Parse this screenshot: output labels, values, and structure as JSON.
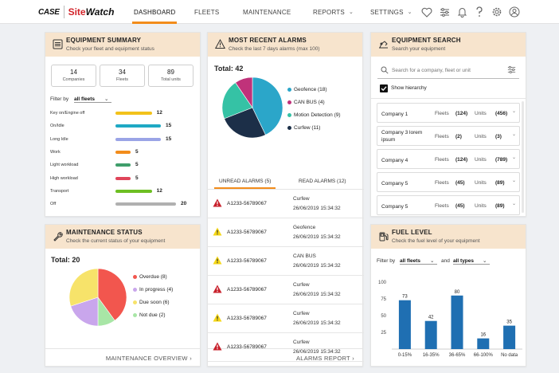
{
  "header": {
    "logo_case": "CASE",
    "logo_site": "Site",
    "logo_watch": "Watch",
    "nav": [
      "DASHBOARD",
      "FLEETS",
      "MAINTENANCE",
      "REPORTS",
      "SETTINGS"
    ],
    "icons": [
      "heart-icon",
      "sliders-icon",
      "bell-icon",
      "help-icon",
      "gear-icon",
      "user-icon"
    ]
  },
  "summary": {
    "title": "EQUIPMENT SUMMARY",
    "subtitle": "Check your fleet and equipment status",
    "stats": [
      {
        "value": "14",
        "label": "Companies"
      },
      {
        "value": "34",
        "label": "Fleets"
      },
      {
        "value": "89",
        "label": "Total units"
      }
    ],
    "filter_label": "Filter by",
    "filter_value": "all fleets",
    "rows": [
      {
        "label": "Key on/Engine off",
        "value": 12,
        "color": "#f2c21b"
      },
      {
        "label": "On/Idle",
        "value": 15,
        "color": "#1fa9c4"
      },
      {
        "label": "Long Idle",
        "value": 15,
        "color": "#9aa4e6"
      },
      {
        "label": "Work",
        "value": 5,
        "color": "#f28c1b"
      },
      {
        "label": "Light workload",
        "value": 5,
        "color": "#3f9e6b"
      },
      {
        "label": "High workload",
        "value": 5,
        "color": "#e0455a"
      },
      {
        "label": "Transport",
        "value": 12,
        "color": "#6dbf22"
      },
      {
        "label": "Off",
        "value": 20,
        "color": "#b0b0b0"
      }
    ]
  },
  "alarms": {
    "title": "MOST RECENT ALARMS",
    "subtitle": "Check the last 7 days alarms (max 100)",
    "total": "Total: 42",
    "legend": [
      {
        "label": "Geofence (18)",
        "value": 18,
        "color": "#2ba6c9"
      },
      {
        "label": "CAN BUS (4)",
        "value": 4,
        "color": "#c0327a"
      },
      {
        "label": "Motion Detection (9)",
        "value": 9,
        "color": "#35c2a5"
      },
      {
        "label": "Curfew (11)",
        "value": 11,
        "color": "#1c2f48"
      }
    ],
    "tab_unread": "UNREAD ALARMS (5)",
    "tab_read": "READ ALARMS (12)",
    "items": [
      {
        "code": "A1233-56789067",
        "type": "Curfew",
        "time": "26/06/2019 15:34:32",
        "severity": "high"
      },
      {
        "code": "A1233-56789067",
        "type": "Geofence",
        "time": "26/06/2019 15:34:32",
        "severity": "medium"
      },
      {
        "code": "A1233-56789067",
        "type": "CAN BUS",
        "time": "26/06/2019 15:34:32",
        "severity": "medium"
      },
      {
        "code": "A1233-56789067",
        "type": "Curfew",
        "time": "26/06/2019 15:34:32",
        "severity": "high"
      },
      {
        "code": "A1233-56789067",
        "type": "Curfew",
        "time": "26/06/2019 15:34:32",
        "severity": "medium"
      },
      {
        "code": "A1233-56789067",
        "type": "Curfew",
        "time": "26/06/2019 15:34:32",
        "severity": "high"
      }
    ],
    "footer": "ALARMS REPORT"
  },
  "search": {
    "title": "EQUIPMENT SEARCH",
    "subtitle": "Search your equipment",
    "placeholder": "Search for a company, fleet or unit",
    "show_hierarchy": "Show hierarchy",
    "fleets_label": "Fleets",
    "units_label": "Units",
    "companies": [
      {
        "name": "Company 1",
        "fleets": "(124)",
        "units": "(456)"
      },
      {
        "name": "Company 3 lorem ipsum",
        "fleets": "(2)",
        "units": "(3)"
      },
      {
        "name": "Company 4",
        "fleets": "(124)",
        "units": "(789)"
      },
      {
        "name": "Company 5",
        "fleets": "(45)",
        "units": "(89)"
      },
      {
        "name": "Company 5",
        "fleets": "(45)",
        "units": "(89)"
      }
    ]
  },
  "maintenance": {
    "title": "MAINTENANCE STATUS",
    "subtitle": "Check the current status of your equipment",
    "total": "Total: 20",
    "legend": [
      {
        "label": "Overdue (8)",
        "value": 8,
        "color": "#f2564e"
      },
      {
        "label": "In progress (4)",
        "value": 4,
        "color": "#c9a6ec"
      },
      {
        "label": "Due soon (6)",
        "value": 6,
        "color": "#f7e36a"
      },
      {
        "label": "Not due (2)",
        "value": 2,
        "color": "#a8e6a6"
      }
    ],
    "pie_order": [
      0,
      3,
      1,
      2
    ],
    "footer": "MAINTENANCE OVERVIEW"
  },
  "fuel": {
    "title": "FUEL LEVEL",
    "subtitle": "Check the fuel level of your equipment",
    "filter_label": "Filter by",
    "filter_value": "all fleets",
    "and_label": "and",
    "and_value": "all types",
    "chart_data": {
      "type": "bar",
      "categories": [
        "0-15%",
        "16-35%",
        "36-65%",
        "66-100%",
        "No data"
      ],
      "values": [
        73,
        42,
        80,
        16,
        35
      ],
      "ylim": [
        0,
        100
      ],
      "yticks": [
        "100",
        "75",
        "50",
        "25"
      ],
      "color": "#1f6fb2"
    }
  }
}
